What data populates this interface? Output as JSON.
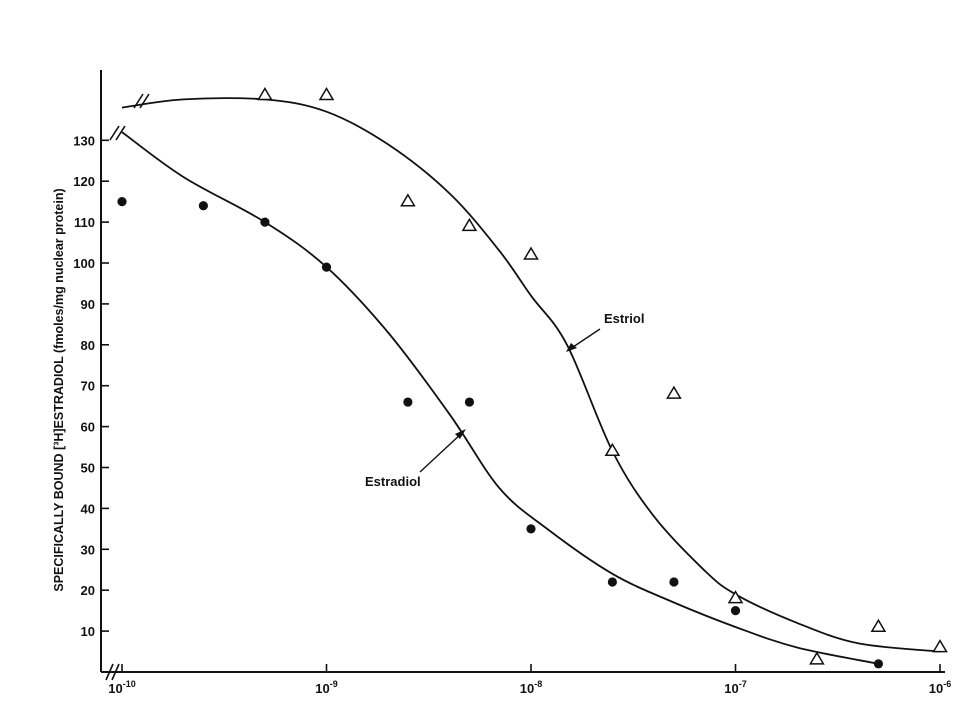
{
  "chart_data": {
    "type": "scatter",
    "title": "",
    "xlabel": "",
    "ylabel": "SPECIFICALLY BOUND [³H]ESTRADIOL (fmoles/mg nuclear protein)",
    "x_scale": "log",
    "xlim": [
      1e-10,
      1e-06
    ],
    "ylim": [
      0,
      140
    ],
    "grid": false,
    "y_ticks": [
      10,
      20,
      30,
      40,
      50,
      60,
      70,
      80,
      90,
      100,
      110,
      120,
      130
    ],
    "x_ticks": [
      {
        "value": 1e-10,
        "mantissa": "10",
        "exponent": "-10"
      },
      {
        "value": 1e-09,
        "mantissa": "10",
        "exponent": "-9"
      },
      {
        "value": 1e-08,
        "mantissa": "10",
        "exponent": "-8"
      },
      {
        "value": 1e-07,
        "mantissa": "10",
        "exponent": "-7"
      },
      {
        "value": 1e-06,
        "mantissa": "10",
        "exponent": "-6"
      }
    ],
    "series": [
      {
        "name": "Estradiol",
        "marker": "filled-circle",
        "color": "#111111",
        "points": [
          {
            "x": 1e-10,
            "y": 115
          },
          {
            "x": 2.5e-10,
            "y": 114
          },
          {
            "x": 5e-10,
            "y": 110
          },
          {
            "x": 1e-09,
            "y": 99
          },
          {
            "x": 2.5e-09,
            "y": 66
          },
          {
            "x": 5e-09,
            "y": 66
          },
          {
            "x": 1e-08,
            "y": 35
          },
          {
            "x": 2.5e-08,
            "y": 22
          },
          {
            "x": 5e-08,
            "y": 22
          },
          {
            "x": 1e-07,
            "y": 15
          },
          {
            "x": 5e-07,
            "y": 2
          }
        ],
        "curve": [
          {
            "x": 1e-10,
            "y": 132
          },
          {
            "x": 2e-10,
            "y": 121
          },
          {
            "x": 5e-10,
            "y": 110
          },
          {
            "x": 1e-09,
            "y": 99
          },
          {
            "x": 2e-09,
            "y": 83
          },
          {
            "x": 4e-09,
            "y": 63
          },
          {
            "x": 7e-09,
            "y": 45
          },
          {
            "x": 1.2e-08,
            "y": 35
          },
          {
            "x": 2.5e-08,
            "y": 24
          },
          {
            "x": 5e-08,
            "y": 17
          },
          {
            "x": 1e-07,
            "y": 11
          },
          {
            "x": 2e-07,
            "y": 6
          },
          {
            "x": 5e-07,
            "y": 2
          }
        ]
      },
      {
        "name": "Estriol",
        "marker": "open-triangle",
        "color": "#111111",
        "points": [
          {
            "x": 5e-10,
            "y": 141
          },
          {
            "x": 1e-09,
            "y": 141
          },
          {
            "x": 2.5e-09,
            "y": 115
          },
          {
            "x": 5e-09,
            "y": 109
          },
          {
            "x": 1e-08,
            "y": 102
          },
          {
            "x": 2.5e-08,
            "y": 54
          },
          {
            "x": 5e-08,
            "y": 68
          },
          {
            "x": 1e-07,
            "y": 18
          },
          {
            "x": 2.5e-07,
            "y": 3
          },
          {
            "x": 5e-07,
            "y": 11
          },
          {
            "x": 1e-06,
            "y": 6
          }
        ],
        "curve": [
          {
            "x": 1e-10,
            "y": 138
          },
          {
            "x": 2e-10,
            "y": 140
          },
          {
            "x": 5e-10,
            "y": 140
          },
          {
            "x": 1e-09,
            "y": 137
          },
          {
            "x": 2e-09,
            "y": 129
          },
          {
            "x": 4e-09,
            "y": 117
          },
          {
            "x": 7e-09,
            "y": 103
          },
          {
            "x": 1e-08,
            "y": 92
          },
          {
            "x": 1.5e-08,
            "y": 80
          },
          {
            "x": 2.5e-08,
            "y": 54
          },
          {
            "x": 4e-08,
            "y": 38
          },
          {
            "x": 7e-08,
            "y": 25
          },
          {
            "x": 1e-07,
            "y": 19
          },
          {
            "x": 2e-07,
            "y": 12
          },
          {
            "x": 4e-07,
            "y": 7
          },
          {
            "x": 1e-06,
            "y": 5
          }
        ]
      }
    ],
    "annotations": [
      {
        "text": "Estriol",
        "target_series": "Estriol"
      },
      {
        "text": "Estradiol",
        "target_series": "Estradiol"
      }
    ]
  }
}
